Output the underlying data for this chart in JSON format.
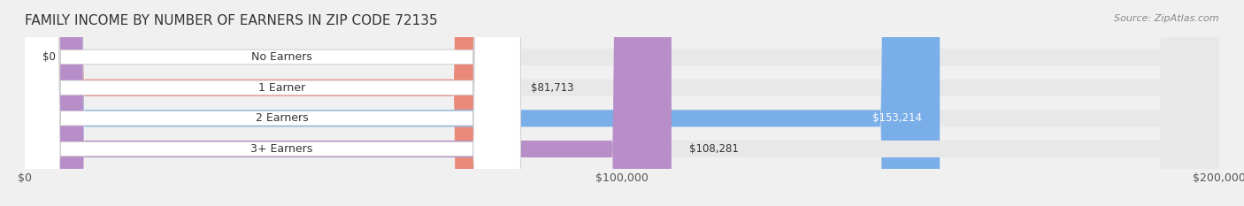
{
  "title": "FAMILY INCOME BY NUMBER OF EARNERS IN ZIP CODE 72135",
  "source": "Source: ZipAtlas.com",
  "categories": [
    "No Earners",
    "1 Earner",
    "2 Earners",
    "3+ Earners"
  ],
  "values": [
    0,
    81713,
    153214,
    108281
  ],
  "bar_colors": [
    "#f5c897",
    "#e8897a",
    "#7aaee8",
    "#b88ec8"
  ],
  "label_colors": [
    "#555555",
    "#555555",
    "#ffffff",
    "#555555"
  ],
  "value_labels": [
    "$0",
    "$81,713",
    "$153,214",
    "$108,281"
  ],
  "xlim": [
    0,
    200000
  ],
  "xticks": [
    0,
    100000,
    200000
  ],
  "xtick_labels": [
    "$0",
    "$100,000",
    "$200,000"
  ],
  "background_color": "#f0f0f0",
  "bar_bg_color": "#e8e8e8",
  "bar_height": 0.55,
  "title_fontsize": 11,
  "label_fontsize": 9,
  "value_fontsize": 8.5,
  "source_fontsize": 8
}
